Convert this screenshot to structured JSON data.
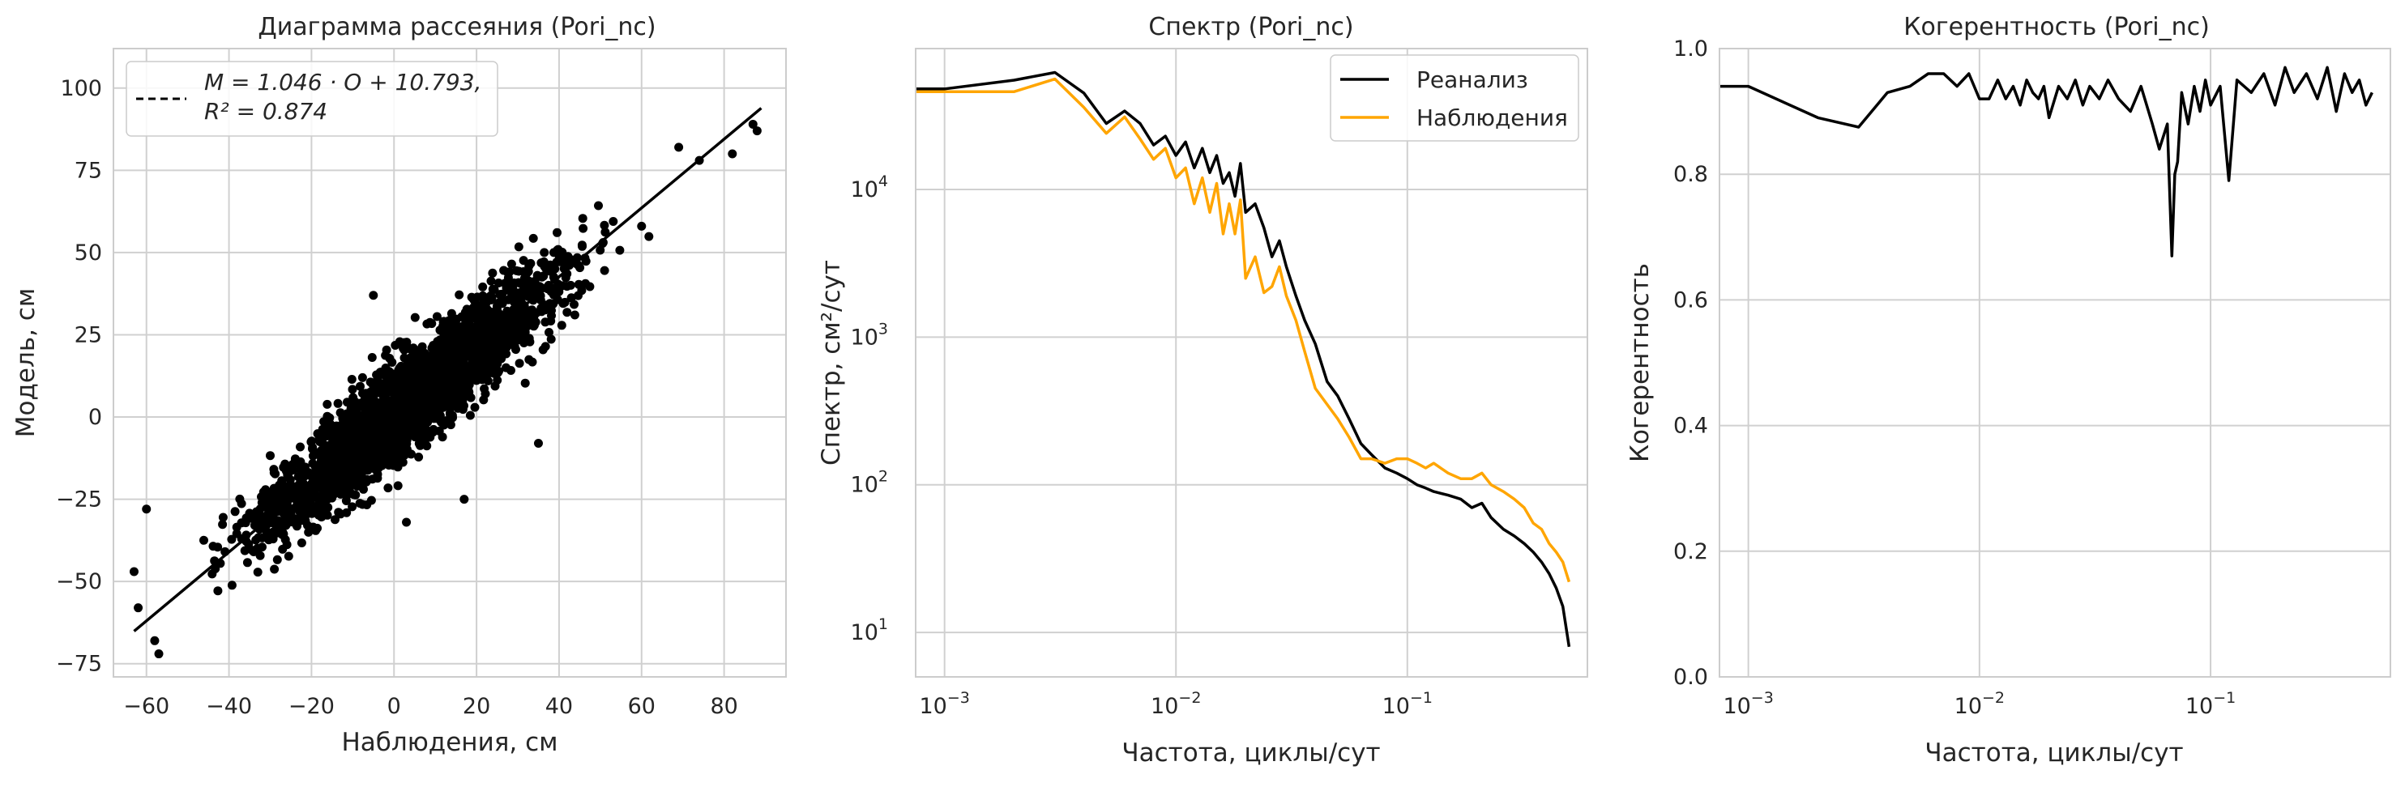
{
  "colors": {
    "model": "#000000",
    "obs": "#ffa500",
    "grid": "#d0d0d0",
    "frame": "#cccccc"
  },
  "chart_data": [
    {
      "type": "scatter",
      "title": "Диаграмма рассеяния (Pori_nc)",
      "xlabel": "Наблюдения, см",
      "ylabel": "Модель, см",
      "xlim": [
        -68,
        95
      ],
      "ylim": [
        -79,
        112
      ],
      "xticks": [
        -60,
        -40,
        -20,
        0,
        20,
        40,
        60,
        80
      ],
      "yticks": [
        -75,
        -50,
        -25,
        0,
        25,
        50,
        75,
        100
      ],
      "xtick_labels": [
        "−60",
        "−40",
        "−20",
        "0",
        "20",
        "40",
        "60",
        "80"
      ],
      "ytick_labels": [
        "−75",
        "−50",
        "−25",
        "0",
        "25",
        "50",
        "75",
        "100"
      ],
      "grid": true,
      "fit": {
        "slope": 1.046,
        "intercept": 10.793,
        "r2": 0.874,
        "x_range": [
          -63,
          89
        ]
      },
      "legend": {
        "position": "top-left",
        "line1": "M = 1.046 · O + 10.793,",
        "line2": "R² = 0.874"
      },
      "outliers": [
        {
          "x": -60,
          "y": -28
        },
        {
          "x": -58,
          "y": -68
        },
        {
          "x": -57,
          "y": -72
        },
        {
          "x": -63,
          "y": -47
        },
        {
          "x": -62,
          "y": -58
        },
        {
          "x": 17,
          "y": -25
        },
        {
          "x": 35,
          "y": -8
        },
        {
          "x": 87,
          "y": 89
        },
        {
          "x": 88,
          "y": 87
        },
        {
          "x": 82,
          "y": 80
        },
        {
          "x": 74,
          "y": 78
        },
        {
          "x": 69,
          "y": 82
        },
        {
          "x": 60,
          "y": 58
        },
        {
          "x": 3,
          "y": -32
        },
        {
          "x": -5,
          "y": 37
        }
      ],
      "cloud": {
        "x_mean": 5,
        "x_sd": 18,
        "noise_sd": 7.5,
        "n": 2500
      }
    },
    {
      "type": "line",
      "title": "Спектр (Pori_nc)",
      "xlabel": "Частота, циклы/сут",
      "ylabel": "Спектр, см²/сут",
      "xscale": "log",
      "yscale": "log",
      "xlim": [
        0.00075,
        0.6
      ],
      "ylim": [
        5,
        90000
      ],
      "xticks": [
        0.001,
        0.01,
        0.1
      ],
      "xtick_labels": [
        "10",
        "10",
        "10"
      ],
      "xtick_exp": [
        "−3",
        "−2",
        "−1"
      ],
      "yticks": [
        10,
        100,
        1000,
        10000
      ],
      "ytick_labels": [
        "10",
        "10",
        "10",
        "10"
      ],
      "ytick_exp": [
        "1",
        "2",
        "3",
        "4"
      ],
      "grid": true,
      "legend": {
        "position": "top-right"
      },
      "series": [
        {
          "name": "Реанализ",
          "color": "#000000",
          "x": [
            0.0007,
            0.001,
            0.002,
            0.003,
            0.004,
            0.005,
            0.006,
            0.007,
            0.008,
            0.009,
            0.01,
            0.011,
            0.012,
            0.013,
            0.014,
            0.015,
            0.016,
            0.017,
            0.018,
            0.019,
            0.02,
            0.022,
            0.024,
            0.026,
            0.028,
            0.03,
            0.033,
            0.036,
            0.04,
            0.045,
            0.05,
            0.056,
            0.063,
            0.07,
            0.08,
            0.09,
            0.1,
            0.11,
            0.12,
            0.13,
            0.15,
            0.17,
            0.19,
            0.21,
            0.23,
            0.26,
            0.29,
            0.32,
            0.35,
            0.38,
            0.41,
            0.44,
            0.47,
            0.5
          ],
          "y": [
            48000,
            48000,
            55000,
            62000,
            45000,
            28000,
            34000,
            28000,
            20000,
            23000,
            17000,
            21000,
            14000,
            19000,
            13000,
            17000,
            11000,
            13000,
            9000,
            15000,
            7000,
            8000,
            5500,
            3500,
            4500,
            3000,
            1900,
            1300,
            900,
            500,
            400,
            280,
            190,
            160,
            130,
            120,
            110,
            100,
            95,
            90,
            85,
            80,
            70,
            75,
            60,
            50,
            45,
            40,
            35,
            30,
            25,
            20,
            15,
            8
          ]
        },
        {
          "name": "Наблюдения",
          "color": "#ffa500",
          "x": [
            0.0007,
            0.001,
            0.002,
            0.003,
            0.004,
            0.005,
            0.006,
            0.007,
            0.008,
            0.009,
            0.01,
            0.011,
            0.012,
            0.013,
            0.014,
            0.015,
            0.016,
            0.017,
            0.018,
            0.019,
            0.02,
            0.022,
            0.024,
            0.026,
            0.028,
            0.03,
            0.033,
            0.036,
            0.04,
            0.045,
            0.05,
            0.056,
            0.063,
            0.07,
            0.08,
            0.09,
            0.1,
            0.11,
            0.12,
            0.13,
            0.15,
            0.17,
            0.19,
            0.21,
            0.23,
            0.26,
            0.29,
            0.32,
            0.35,
            0.38,
            0.41,
            0.44,
            0.47,
            0.5
          ],
          "y": [
            46000,
            46000,
            46000,
            56000,
            36000,
            24000,
            31000,
            22000,
            16000,
            19000,
            12000,
            14000,
            8000,
            12000,
            7000,
            11000,
            5000,
            8000,
            5000,
            8500,
            2500,
            3500,
            2000,
            2200,
            3000,
            1900,
            1300,
            800,
            450,
            350,
            280,
            210,
            150,
            150,
            140,
            150,
            150,
            140,
            130,
            140,
            120,
            110,
            110,
            120,
            100,
            90,
            80,
            70,
            55,
            50,
            40,
            35,
            30,
            22
          ]
        }
      ]
    },
    {
      "type": "line",
      "title": "Когерентность (Pori_nc)",
      "xlabel": "Частота, циклы/сут",
      "ylabel": "Когерентность",
      "xscale": "log",
      "xlim": [
        0.00075,
        0.6
      ],
      "ylim": [
        0,
        1
      ],
      "xticks": [
        0.001,
        0.01,
        0.1
      ],
      "xtick_labels": [
        "10",
        "10",
        "10"
      ],
      "xtick_exp": [
        "−3",
        "−2",
        "−1"
      ],
      "yticks": [
        0,
        0.2,
        0.4,
        0.6,
        0.8,
        1.0
      ],
      "ytick_labels": [
        "0.0",
        "0.2",
        "0.4",
        "0.6",
        "0.8",
        "1.0"
      ],
      "grid": true,
      "series": [
        {
          "name": "",
          "color": "#000000",
          "x": [
            0.0007,
            0.001,
            0.002,
            0.003,
            0.004,
            0.005,
            0.006,
            0.007,
            0.008,
            0.009,
            0.01,
            0.011,
            0.012,
            0.013,
            0.014,
            0.015,
            0.016,
            0.017,
            0.018,
            0.019,
            0.02,
            0.022,
            0.024,
            0.026,
            0.028,
            0.03,
            0.033,
            0.036,
            0.04,
            0.045,
            0.05,
            0.056,
            0.06,
            0.065,
            0.068,
            0.07,
            0.072,
            0.075,
            0.08,
            0.085,
            0.09,
            0.095,
            0.1,
            0.11,
            0.12,
            0.13,
            0.15,
            0.17,
            0.19,
            0.21,
            0.23,
            0.26,
            0.29,
            0.32,
            0.35,
            0.38,
            0.41,
            0.44,
            0.47,
            0.5
          ],
          "y": [
            0.94,
            0.94,
            0.89,
            0.875,
            0.93,
            0.94,
            0.96,
            0.96,
            0.94,
            0.96,
            0.92,
            0.92,
            0.95,
            0.92,
            0.94,
            0.91,
            0.95,
            0.93,
            0.92,
            0.94,
            0.89,
            0.94,
            0.92,
            0.95,
            0.91,
            0.94,
            0.92,
            0.95,
            0.92,
            0.9,
            0.94,
            0.88,
            0.84,
            0.88,
            0.67,
            0.8,
            0.82,
            0.93,
            0.88,
            0.94,
            0.9,
            0.95,
            0.91,
            0.94,
            0.79,
            0.95,
            0.93,
            0.96,
            0.91,
            0.97,
            0.93,
            0.96,
            0.92,
            0.97,
            0.9,
            0.96,
            0.93,
            0.95,
            0.91,
            0.93
          ]
        }
      ]
    }
  ]
}
